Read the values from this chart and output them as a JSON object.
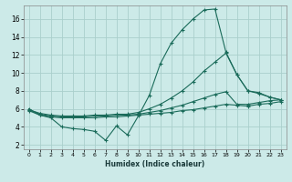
{
  "xlabel": "Humidex (Indice chaleur)",
  "bg_color": "#cceae8",
  "grid_color": "#aacfcc",
  "line_color": "#1a6b5a",
  "x_ticks": [
    0,
    1,
    2,
    3,
    4,
    5,
    6,
    7,
    8,
    9,
    10,
    11,
    12,
    13,
    14,
    15,
    16,
    17,
    18,
    19,
    20,
    21,
    22,
    23
  ],
  "y_ticks": [
    2,
    4,
    6,
    8,
    10,
    12,
    14,
    16
  ],
  "ylim": [
    1.5,
    17.5
  ],
  "xlim": [
    -0.5,
    23.5
  ],
  "series1_x": [
    0,
    1,
    2,
    3,
    4,
    5,
    6,
    7,
    8,
    9,
    10,
    11,
    12,
    13,
    14,
    15,
    16,
    17,
    18,
    19,
    20,
    21,
    22,
    23
  ],
  "series1_y": [
    6.0,
    5.3,
    5.0,
    4.0,
    3.8,
    3.7,
    3.5,
    2.5,
    4.1,
    3.1,
    5.2,
    7.5,
    11.0,
    13.3,
    14.8,
    16.0,
    17.0,
    17.1,
    12.3,
    9.8,
    8.0,
    7.8,
    7.3,
    7.0
  ],
  "series2_x": [
    0,
    1,
    2,
    3,
    4,
    5,
    6,
    7,
    8,
    9,
    10,
    11,
    12,
    13,
    14,
    15,
    16,
    17,
    18,
    19,
    20,
    21,
    22,
    23
  ],
  "series2_y": [
    5.9,
    5.5,
    5.3,
    5.2,
    5.2,
    5.2,
    5.3,
    5.3,
    5.4,
    5.4,
    5.6,
    6.0,
    6.5,
    7.2,
    8.0,
    9.0,
    10.2,
    11.2,
    12.2,
    9.8,
    8.0,
    7.7,
    7.3,
    7.0
  ],
  "series3_x": [
    0,
    1,
    2,
    3,
    4,
    5,
    6,
    7,
    8,
    9,
    10,
    11,
    12,
    13,
    14,
    15,
    16,
    17,
    18,
    19,
    20,
    21,
    22,
    23
  ],
  "series3_y": [
    5.9,
    5.4,
    5.2,
    5.1,
    5.1,
    5.1,
    5.2,
    5.2,
    5.3,
    5.3,
    5.4,
    5.6,
    5.8,
    6.1,
    6.4,
    6.8,
    7.2,
    7.6,
    7.9,
    6.5,
    6.5,
    6.7,
    6.9,
    7.0
  ],
  "series4_x": [
    0,
    1,
    2,
    3,
    4,
    5,
    6,
    7,
    8,
    9,
    10,
    11,
    12,
    13,
    14,
    15,
    16,
    17,
    18,
    19,
    20,
    21,
    22,
    23
  ],
  "series4_y": [
    5.8,
    5.3,
    5.1,
    5.0,
    5.0,
    5.0,
    5.0,
    5.1,
    5.1,
    5.2,
    5.3,
    5.4,
    5.5,
    5.6,
    5.8,
    5.9,
    6.1,
    6.3,
    6.5,
    6.4,
    6.3,
    6.5,
    6.6,
    6.8
  ]
}
